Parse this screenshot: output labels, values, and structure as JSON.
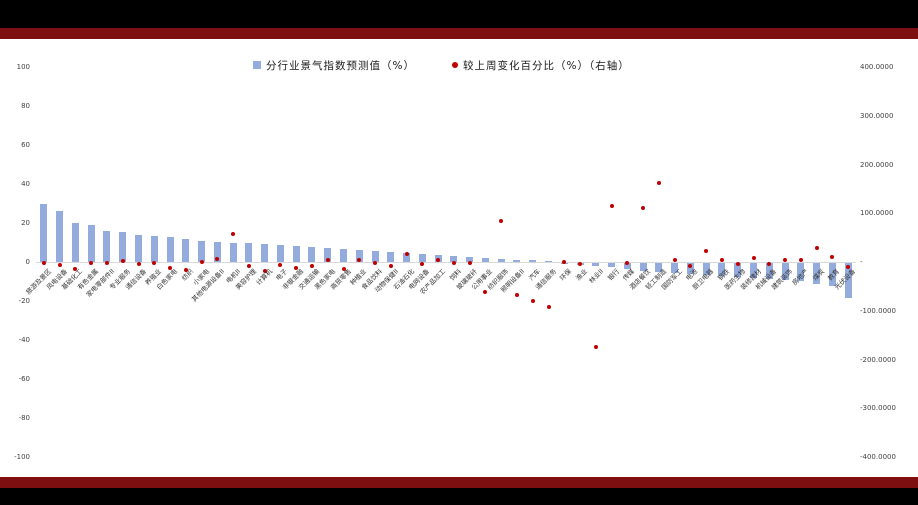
{
  "chart": {
    "left_axis_ticks": [
      "100",
      "80",
      "60",
      "40",
      "20",
      "0",
      "-20",
      "-40",
      "-60",
      "-80",
      "-100"
    ],
    "right_axis_ticks": [
      "400.0000",
      "300.0000",
      "200.0000",
      "100.0000",
      "-",
      "-100.0000",
      "-200.0000",
      "-300.0000",
      "-400.0000"
    ],
    "colors": {
      "bar": "#93acdd",
      "dot": "#c00000",
      "frame": "#7d0f11",
      "background": "#000000",
      "panel": "#ffffff"
    }
  },
  "chart_data": {
    "type": "bar",
    "title": "",
    "categories": [
      "旅游及景区",
      "风电设备",
      "基础化工",
      "有色金属",
      "家电零部件II",
      "专业服务",
      "通信设备",
      "养殖业",
      "白色家电",
      "纺织",
      "小家电",
      "其他电源设备II",
      "电机II",
      "美容护理",
      "计算机",
      "电子",
      "非银金融",
      "交通运输",
      "黑色家电",
      "商贸零售",
      "种植业",
      "食品饮料",
      "动物保健II",
      "石油石化",
      "电网设备",
      "农产品加工",
      "饲料",
      "玻璃玻纤",
      "公用事业",
      "纺织服饰",
      "照明设备II",
      "汽车",
      "通信服务",
      "环保",
      "渔业",
      "林业II",
      "银行",
      "传媒",
      "酒店餐饮",
      "轻工制造",
      "国防军工",
      "电池",
      "厨卫电器",
      "钢铁",
      "医药生物",
      "装修建材",
      "机械设备",
      "建筑装饰",
      "房地产",
      "煤炭",
      "教育",
      "光伏设备"
    ],
    "series": [
      {
        "name": "分行业景气指数预测值（%）",
        "type": "bar",
        "axis": "left",
        "color": "#93acdd",
        "values": [
          30,
          26,
          20,
          19,
          16,
          15.5,
          14,
          13.5,
          13,
          12,
          11,
          10.5,
          10,
          10,
          9,
          8.5,
          8,
          7.5,
          7,
          6.5,
          6,
          5.5,
          5,
          4.5,
          4,
          3.5,
          3,
          2.5,
          2,
          1.5,
          1,
          0.8,
          0.5,
          -0.5,
          -1,
          -1.5,
          -2,
          -3,
          -4,
          -4.5,
          -5,
          -5.5,
          -6,
          -6.5,
          -7,
          -7.5,
          -8,
          -8.5,
          -9,
          -11,
          -12,
          -18
        ]
      },
      {
        "name": "较上周变化百分比（%）（右轴）",
        "type": "scatter",
        "axis": "right",
        "color": "#c00000",
        "values": [
          -2,
          -6,
          -14,
          -2,
          -2,
          2,
          -4,
          -2,
          -12,
          -16,
          0,
          6,
          57,
          -8,
          -18,
          -6,
          -12,
          -8,
          4,
          -14,
          4,
          -2,
          -8,
          16,
          -4,
          4,
          -2,
          -2,
          -62,
          84,
          -68,
          -80,
          -92,
          0,
          -4,
          -175,
          115,
          -2,
          110,
          162,
          4,
          -8,
          23,
          4,
          -4,
          8,
          -4,
          4,
          4,
          29,
          10,
          -10
        ]
      }
    ],
    "left_ylim": [
      -100,
      100
    ],
    "right_ylim": [
      -400,
      400
    ],
    "grid": false,
    "legend_position": "top-center",
    "xlabel": "",
    "ylabel": ""
  }
}
